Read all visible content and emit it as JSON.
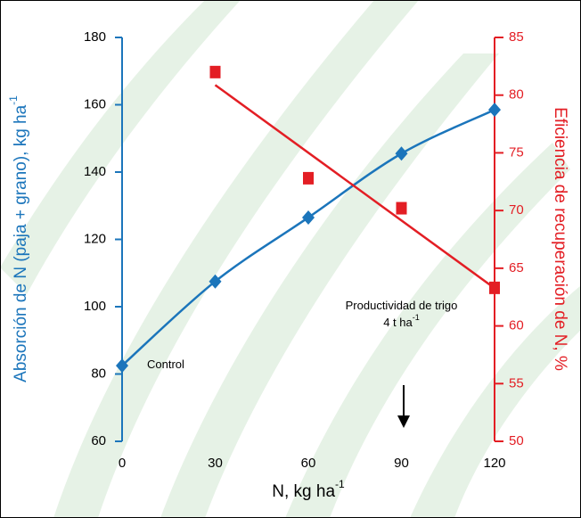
{
  "chart_data": {
    "type": "line",
    "x_label": {
      "text": "N, kg ha",
      "sup": "-1"
    },
    "y_label": {
      "text": "Absorción de N (paja + grano), kg ha",
      "sup": "-1"
    },
    "y2_label": "Eficiencia de recuperación de N, %",
    "x": [
      0,
      30,
      60,
      90,
      120
    ],
    "xlim": [
      0,
      120
    ],
    "xticks": [
      0,
      30,
      60,
      90,
      120
    ],
    "ylim": [
      60,
      180
    ],
    "yticks": [
      60,
      80,
      100,
      120,
      140,
      160,
      180
    ],
    "y2lim": [
      50,
      85
    ],
    "y2ticks": [
      50,
      55,
      60,
      65,
      70,
      75,
      80,
      85
    ],
    "series": [
      {
        "color": "#1b75bb",
        "marker": "diamond",
        "values": [
          82.5,
          107.5,
          126.5,
          145.5,
          158.5
        ]
      },
      {
        "color": "#e31e24",
        "marker": "square",
        "axis": "y2",
        "x": [
          30,
          60,
          90,
          120
        ],
        "values": [
          82,
          72.8,
          70.2,
          63.3
        ]
      }
    ],
    "annotations": [
      {
        "text": "Control",
        "x": 0,
        "y": 82.5
      },
      {
        "text": "Productividad de trigo",
        "x": 90,
        "y": 100
      },
      {
        "text": "4 t ha",
        "sup": "-1",
        "x": 90,
        "y": 95
      }
    ]
  }
}
